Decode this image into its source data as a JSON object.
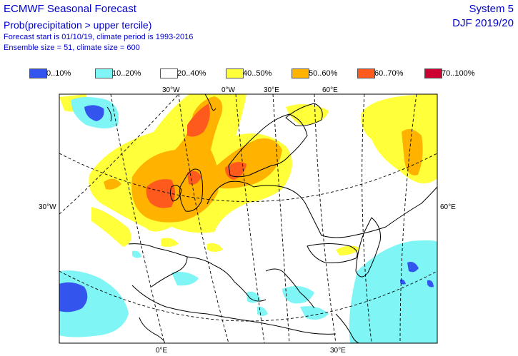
{
  "header": {
    "title": "ECMWF Seasonal Forecast",
    "subtitle": "Prob(precipitation > upper tercile)",
    "info_line1": "Forecast start is 01/10/19, climate period is 1993-2016",
    "info_line2": "Ensemble size = 51, climate size = 600",
    "system": "System 5",
    "season": "DJF 2019/20"
  },
  "legend": [
    {
      "label": "0..10%",
      "color": "#3355ee"
    },
    {
      "label": "10..20%",
      "color": "#7ff5f5"
    },
    {
      "label": "20..40%",
      "color": "#ffffff"
    },
    {
      "label": "40..50%",
      "color": "#ffff3a"
    },
    {
      "label": "50..60%",
      "color": "#ffb300"
    },
    {
      "label": "60..70%",
      "color": "#ff5a1e"
    },
    {
      "label": "70..100%",
      "color": "#cc0033"
    }
  ],
  "grid_labels": {
    "top": [
      "30°W",
      "0°W",
      "30°E",
      "60°E"
    ],
    "left": "30°W",
    "right": "60°E",
    "bottom": [
      "0°E",
      "30°E"
    ]
  }
}
